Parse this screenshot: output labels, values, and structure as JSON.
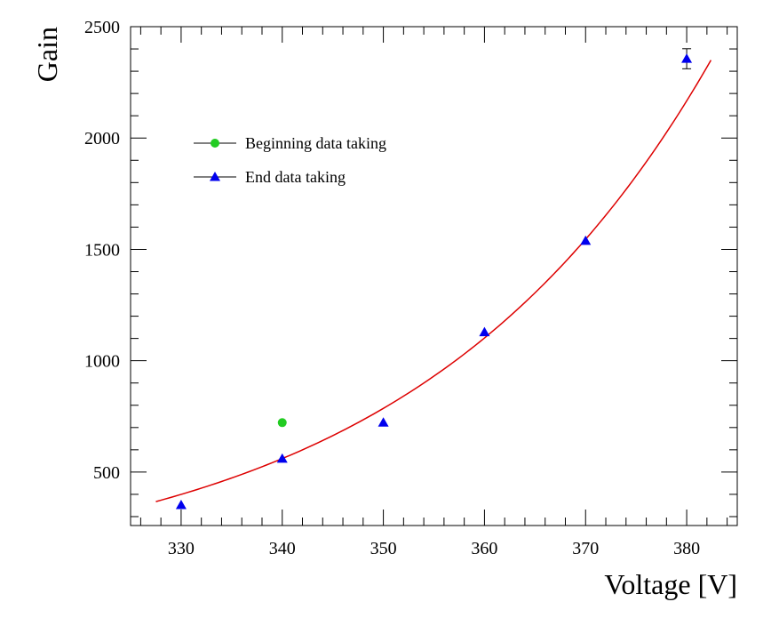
{
  "chart_data": {
    "type": "scatter",
    "xlabel": "Voltage [V]",
    "ylabel": "Gain",
    "xlim": [
      325,
      385
    ],
    "ylim": [
      260,
      2500
    ],
    "x_ticks": [
      330,
      340,
      350,
      360,
      370,
      380
    ],
    "y_ticks": [
      500,
      1000,
      1500,
      2000,
      2500
    ],
    "x_minor_step": 2,
    "y_minor_step": 100,
    "legend_position": "upper-left",
    "series": [
      {
        "name": "Beginning data taking",
        "marker": "circle",
        "color": "#22cc22",
        "points": [
          {
            "x": 340,
            "y": 722
          }
        ]
      },
      {
        "name": "End data taking",
        "marker": "triangle",
        "color": "#0000ee",
        "points": [
          {
            "x": 330,
            "y": 352
          },
          {
            "x": 340,
            "y": 560
          },
          {
            "x": 350,
            "y": 722
          },
          {
            "x": 360,
            "y": 1128
          },
          {
            "x": 370,
            "y": 1538
          },
          {
            "x": 380,
            "y": 2356,
            "err": 45
          }
        ]
      }
    ],
    "fit": {
      "type": "exponential",
      "color": "#dd0000",
      "x_range": [
        327.5,
        382.4
      ],
      "a": 367.4,
      "b": 0.0338,
      "x0": 327.5
    }
  }
}
